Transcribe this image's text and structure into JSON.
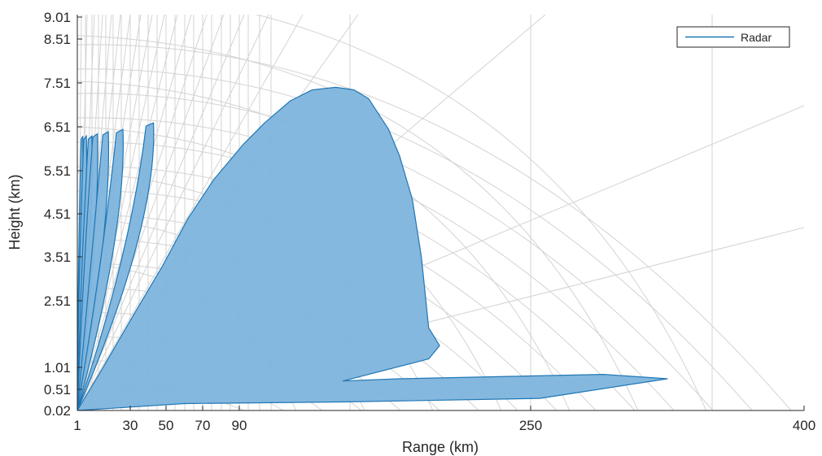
{
  "chart_data": {
    "type": "area",
    "xlabel": "Range (km)",
    "ylabel": "Height (km)",
    "xlim": [
      1,
      400
    ],
    "ylim": [
      0.02,
      9.01
    ],
    "x_ticks": [
      "1",
      "30",
      "50",
      "70",
      "90",
      "250",
      "400"
    ],
    "y_ticks": [
      "0.02",
      "0.51",
      "1.01",
      "2.51",
      "3.51",
      "4.51",
      "5.51",
      "6.51",
      "7.51",
      "8.51",
      "9.01"
    ],
    "grid": true,
    "legend": {
      "placement": "top-right",
      "entries": [
        "Radar"
      ]
    },
    "colors": {
      "fill": "#7eb4dd",
      "line": "#1f77b4",
      "grid": "#d3d3d3",
      "axis": "#262626"
    },
    "series": [
      {
        "name": "Radar",
        "lobes": [
          {
            "peak_range_km": 4,
            "peak_height_km": 6.3
          },
          {
            "peak_range_km": 6,
            "peak_height_km": 6.3
          },
          {
            "peak_range_km": 9,
            "peak_height_km": 6.3
          },
          {
            "peak_range_km": 12,
            "peak_height_km": 6.35
          },
          {
            "peak_range_km": 18,
            "peak_height_km": 6.4
          },
          {
            "peak_range_km": 26,
            "peak_height_km": 6.45
          },
          {
            "peak_range_km": 43,
            "peak_height_km": 6.6
          },
          {
            "peak_range_km": 143,
            "peak_height_km": 7.4
          }
        ],
        "outline": [
          [
            1,
            0.02
          ],
          [
            15,
            1.0
          ],
          [
            32,
            2.2
          ],
          [
            48,
            3.3
          ],
          [
            62,
            4.4
          ],
          [
            76,
            5.3
          ],
          [
            92,
            6.1
          ],
          [
            104,
            6.6
          ],
          [
            118,
            7.1
          ],
          [
            130,
            7.35
          ],
          [
            143,
            7.41
          ],
          [
            153,
            7.35
          ],
          [
            161,
            7.15
          ],
          [
            172,
            6.45
          ],
          [
            178,
            5.85
          ],
          [
            185,
            4.85
          ],
          [
            190,
            3.5
          ],
          [
            194,
            1.9
          ],
          [
            200,
            1.5
          ],
          [
            194,
            1.2
          ],
          [
            147,
            0.7
          ],
          [
            178,
            0.75
          ],
          [
            290,
            0.85
          ],
          [
            325,
            0.75
          ],
          [
            255,
            0.3
          ],
          [
            150,
            0.22
          ],
          [
            60,
            0.18
          ],
          [
            1,
            0.02
          ]
        ]
      }
    ]
  }
}
